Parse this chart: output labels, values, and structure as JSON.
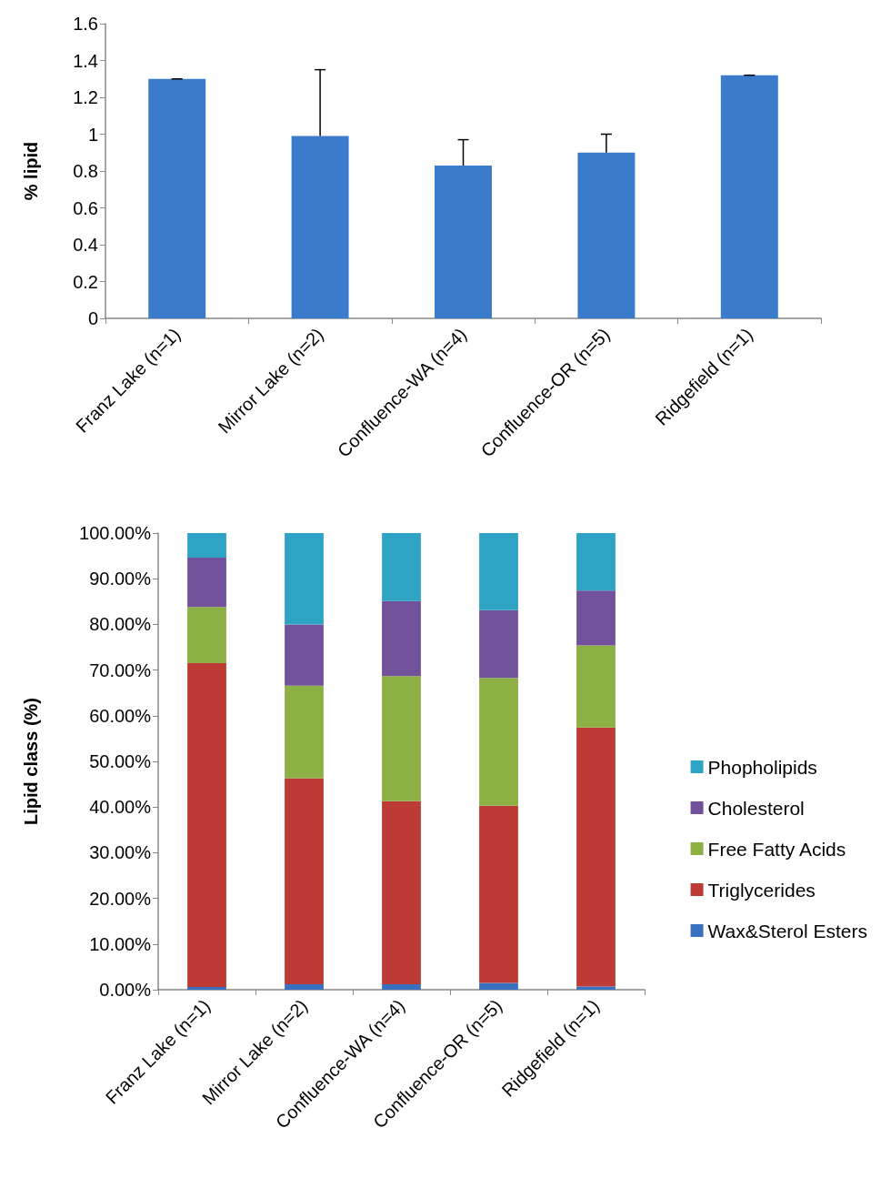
{
  "chart_data": [
    {
      "type": "bar",
      "ylabel": "% lipid",
      "categories": [
        "Franz Lake (n=1)",
        "Mirror Lake (n=2)",
        "Confluence-WA (n=4)",
        "Confluence-OR (n=5)",
        "Ridgefield (n=1)"
      ],
      "series": [
        {
          "color": "#3a7bcc",
          "values": [
            1.3,
            0.99,
            0.83,
            0.9,
            1.32
          ],
          "errors": [
            [
              1.3,
              1.3
            ],
            [
              0.99,
              1.35
            ],
            [
              0.83,
              0.97
            ],
            [
              0.9,
              1.0
            ],
            [
              1.32,
              1.32
            ]
          ]
        }
      ],
      "ylim": [
        0,
        1.6
      ],
      "yticks": [
        0,
        0.2,
        0.4,
        0.6,
        0.8,
        1,
        1.2,
        1.4,
        1.6
      ],
      "grid": false,
      "legend": false
    },
    {
      "type": "bar",
      "stacked": true,
      "ylabel": "Lipid class (%)",
      "categories": [
        "Franz Lake (n=1)",
        "Mirror Lake (n=2)",
        "Confluence-WA (n=4)",
        "Confluence-OR (n=5)",
        "Ridgefield (n=1)"
      ],
      "series": [
        {
          "name": "Wax&Sterol Esters",
          "color": "#3a70c0",
          "values": [
            0.6,
            1.2,
            1.2,
            1.5,
            0.7
          ]
        },
        {
          "name": "Triglycerides",
          "color": "#be3a34",
          "values": [
            70.9,
            45.1,
            40.1,
            38.8,
            56.7
          ]
        },
        {
          "name": "Free Fatty Acids",
          "color": "#8cb043",
          "values": [
            12.3,
            20.3,
            27.4,
            28.0,
            18.0
          ]
        },
        {
          "name": "Cholesterol",
          "color": "#71529a",
          "values": [
            10.8,
            13.4,
            16.4,
            14.8,
            12.0
          ]
        },
        {
          "name": "Phopholipids",
          "color": "#2fa3c4",
          "values": [
            5.4,
            20.0,
            14.9,
            16.9,
            12.6
          ]
        }
      ],
      "ylim": [
        0,
        100
      ],
      "yticks": [
        {
          "value": 0,
          "label": "0.00%"
        },
        {
          "value": 10,
          "label": "10.00%"
        },
        {
          "value": 20,
          "label": "20.00%"
        },
        {
          "value": 30,
          "label": "30.00%"
        },
        {
          "value": 40,
          "label": "40.00%"
        },
        {
          "value": 50,
          "label": "50.00%"
        },
        {
          "value": 60,
          "label": "60.00%"
        },
        {
          "value": 70,
          "label": "70.00%"
        },
        {
          "value": 80,
          "label": "80.00%"
        },
        {
          "value": 90,
          "label": "90.00%"
        },
        {
          "value": 100,
          "label": "100.00%"
        }
      ],
      "grid": false,
      "legend": "right"
    }
  ]
}
